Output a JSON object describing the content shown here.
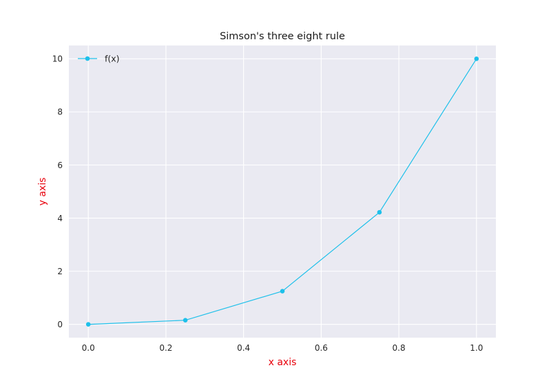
{
  "chart_data": {
    "type": "line",
    "title": "Simson's three eight rule",
    "xlabel": "x axis",
    "ylabel": "y axis",
    "xlim": [
      -0.05,
      1.05
    ],
    "ylim": [
      -0.5,
      10.5
    ],
    "xticks": [
      0.0,
      0.2,
      0.4,
      0.6,
      0.8,
      1.0
    ],
    "xtick_labels": [
      "0.0",
      "0.2",
      "0.4",
      "0.6",
      "0.8",
      "1.0"
    ],
    "yticks": [
      0,
      2,
      4,
      6,
      8,
      10
    ],
    "ytick_labels": [
      "0",
      "2",
      "4",
      "6",
      "8",
      "10"
    ],
    "grid": true,
    "legend_position": "top-left",
    "colors": {
      "background": "#eaeaf2",
      "grid": "#ffffff",
      "series": "#1ec0ea",
      "axis_label": "#e8000b"
    },
    "series": [
      {
        "name": "f(x)",
        "x": [
          0.0,
          0.25,
          0.5,
          0.75,
          1.0
        ],
        "values": [
          0.0,
          0.156,
          1.25,
          4.219,
          10.0
        ]
      }
    ]
  }
}
